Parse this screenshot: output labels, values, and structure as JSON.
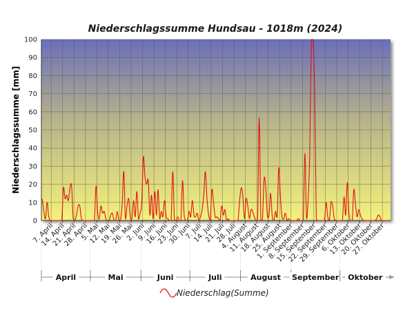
{
  "chart_data": {
    "type": "line",
    "title": "Niederschlagssumme Hundsau - 1018m (2024)",
    "ylabel": "Niederschlagssumme [mm]",
    "ylim": [
      0,
      100
    ],
    "yticks": [
      "0",
      "10",
      "20",
      "30",
      "40",
      "50",
      "60",
      "70",
      "80",
      "90",
      "100"
    ],
    "grid": true,
    "legend_position": "bottom-center",
    "date_range": [
      "2024-04-01",
      "2024-11-01"
    ],
    "week_ticks": [
      {
        "date": "2024-04-07",
        "label": "7. April"
      },
      {
        "date": "2024-04-14",
        "label": "14. April"
      },
      {
        "date": "2024-04-21",
        "label": "21. April"
      },
      {
        "date": "2024-04-28",
        "label": "28. April"
      },
      {
        "date": "2024-05-05",
        "label": "5. Mai"
      },
      {
        "date": "2024-05-12",
        "label": "12. Mai"
      },
      {
        "date": "2024-05-19",
        "label": "19. Mai"
      },
      {
        "date": "2024-05-26",
        "label": "26. Mai"
      },
      {
        "date": "2024-06-02",
        "label": "2. Juni"
      },
      {
        "date": "2024-06-09",
        "label": "9. Juni"
      },
      {
        "date": "2024-06-16",
        "label": "16. Juni"
      },
      {
        "date": "2024-06-23",
        "label": "23. Juni"
      },
      {
        "date": "2024-06-30",
        "label": "30. Juni"
      },
      {
        "date": "2024-07-07",
        "label": "7. Juli"
      },
      {
        "date": "2024-07-14",
        "label": "14. Juli"
      },
      {
        "date": "2024-07-21",
        "label": "21. Juli"
      },
      {
        "date": "2024-07-28",
        "label": "28. Juli"
      },
      {
        "date": "2024-08-04",
        "label": "4. August"
      },
      {
        "date": "2024-08-11",
        "label": "11. August"
      },
      {
        "date": "2024-08-18",
        "label": "18. August"
      },
      {
        "date": "2024-08-25",
        "label": "25. August"
      },
      {
        "date": "2024-09-01",
        "label": "1. September"
      },
      {
        "date": "2024-09-08",
        "label": "8. September"
      },
      {
        "date": "2024-09-15",
        "label": "15. September"
      },
      {
        "date": "2024-09-22",
        "label": "22. September"
      },
      {
        "date": "2024-09-29",
        "label": "29. September"
      },
      {
        "date": "2024-10-06",
        "label": "6. Oktober"
      },
      {
        "date": "2024-10-13",
        "label": "13. Oktober"
      },
      {
        "date": "2024-10-20",
        "label": "20. Oktober"
      },
      {
        "date": "2024-10-27",
        "label": "27. Oktober"
      }
    ],
    "months": [
      {
        "label": "April",
        "start": "2024-04-01",
        "end": "2024-05-01"
      },
      {
        "label": "Mai",
        "start": "2024-05-01",
        "end": "2024-06-01"
      },
      {
        "label": "Juni",
        "start": "2024-06-01",
        "end": "2024-07-01"
      },
      {
        "label": "Juli",
        "start": "2024-07-01",
        "end": "2024-08-01"
      },
      {
        "label": "August",
        "start": "2024-08-01",
        "end": "2024-09-01"
      },
      {
        "label": "September",
        "start": "2024-09-01",
        "end": "2024-10-01"
      },
      {
        "label": "Oktober",
        "start": "2024-10-01",
        "end": "2024-11-01"
      }
    ],
    "series": [
      {
        "name": "Niederschlag(Summe)",
        "color": "#e01010",
        "points": [
          [
            "2024-04-01",
            12
          ],
          [
            "2024-04-02",
            5
          ],
          [
            "2024-04-03",
            1
          ],
          [
            "2024-04-04",
            10
          ],
          [
            "2024-04-05",
            2
          ],
          [
            "2024-04-06",
            0
          ],
          [
            "2024-04-07",
            0
          ],
          [
            "2024-04-08",
            0
          ],
          [
            "2024-04-09",
            0
          ],
          [
            "2024-04-10",
            0
          ],
          [
            "2024-04-11",
            0
          ],
          [
            "2024-04-12",
            0
          ],
          [
            "2024-04-13",
            0
          ],
          [
            "2024-04-14",
            18
          ],
          [
            "2024-04-15",
            12
          ],
          [
            "2024-04-16",
            14
          ],
          [
            "2024-04-17",
            11
          ],
          [
            "2024-04-18",
            18
          ],
          [
            "2024-04-19",
            19
          ],
          [
            "2024-04-20",
            1
          ],
          [
            "2024-04-21",
            0
          ],
          [
            "2024-04-22",
            3
          ],
          [
            "2024-04-23",
            8
          ],
          [
            "2024-04-24",
            8
          ],
          [
            "2024-04-25",
            1
          ],
          [
            "2024-04-26",
            0
          ],
          [
            "2024-04-27",
            0
          ],
          [
            "2024-04-28",
            0
          ],
          [
            "2024-04-29",
            0
          ],
          [
            "2024-04-30",
            0
          ],
          [
            "2024-05-01",
            0
          ],
          [
            "2024-05-02",
            0
          ],
          [
            "2024-05-03",
            0
          ],
          [
            "2024-05-04",
            19
          ],
          [
            "2024-05-05",
            4
          ],
          [
            "2024-05-06",
            1
          ],
          [
            "2024-05-07",
            8
          ],
          [
            "2024-05-08",
            4
          ],
          [
            "2024-05-09",
            5
          ],
          [
            "2024-05-10",
            1
          ],
          [
            "2024-05-11",
            0
          ],
          [
            "2024-05-12",
            0
          ],
          [
            "2024-05-13",
            3
          ],
          [
            "2024-05-14",
            4
          ],
          [
            "2024-05-15",
            0
          ],
          [
            "2024-05-16",
            0
          ],
          [
            "2024-05-17",
            5
          ],
          [
            "2024-05-18",
            0
          ],
          [
            "2024-05-19",
            0
          ],
          [
            "2024-05-20",
            9
          ],
          [
            "2024-05-21",
            27
          ],
          [
            "2024-05-22",
            1
          ],
          [
            "2024-05-23",
            8
          ],
          [
            "2024-05-24",
            12
          ],
          [
            "2024-05-25",
            2
          ],
          [
            "2024-05-26",
            1
          ],
          [
            "2024-05-27",
            11
          ],
          [
            "2024-05-28",
            2
          ],
          [
            "2024-05-29",
            16
          ],
          [
            "2024-05-30",
            1
          ],
          [
            "2024-05-31",
            4
          ],
          [
            "2024-06-01",
            10
          ],
          [
            "2024-06-02",
            35
          ],
          [
            "2024-06-03",
            24
          ],
          [
            "2024-06-04",
            20
          ],
          [
            "2024-06-05",
            22
          ],
          [
            "2024-06-06",
            3
          ],
          [
            "2024-06-07",
            14
          ],
          [
            "2024-06-08",
            1
          ],
          [
            "2024-06-09",
            16
          ],
          [
            "2024-06-10",
            3
          ],
          [
            "2024-06-11",
            17
          ],
          [
            "2024-06-12",
            1
          ],
          [
            "2024-06-13",
            5
          ],
          [
            "2024-06-14",
            2
          ],
          [
            "2024-06-15",
            11
          ],
          [
            "2024-06-16",
            2
          ],
          [
            "2024-06-17",
            1
          ],
          [
            "2024-06-18",
            0
          ],
          [
            "2024-06-19",
            0
          ],
          [
            "2024-06-20",
            27
          ],
          [
            "2024-06-21",
            1
          ],
          [
            "2024-06-22",
            0
          ],
          [
            "2024-06-23",
            2
          ],
          [
            "2024-06-24",
            0
          ],
          [
            "2024-06-25",
            0
          ],
          [
            "2024-06-26",
            22
          ],
          [
            "2024-06-27",
            3
          ],
          [
            "2024-06-28",
            0
          ],
          [
            "2024-06-29",
            0
          ],
          [
            "2024-06-30",
            5
          ],
          [
            "2024-07-01",
            2
          ],
          [
            "2024-07-02",
            11
          ],
          [
            "2024-07-03",
            3
          ],
          [
            "2024-07-04",
            2
          ],
          [
            "2024-07-05",
            4
          ],
          [
            "2024-07-06",
            0
          ],
          [
            "2024-07-07",
            2
          ],
          [
            "2024-07-08",
            6
          ],
          [
            "2024-07-09",
            14
          ],
          [
            "2024-07-10",
            27
          ],
          [
            "2024-07-11",
            12
          ],
          [
            "2024-07-12",
            3
          ],
          [
            "2024-07-13",
            0
          ],
          [
            "2024-07-14",
            17
          ],
          [
            "2024-07-15",
            10
          ],
          [
            "2024-07-16",
            2
          ],
          [
            "2024-07-17",
            2
          ],
          [
            "2024-07-18",
            1
          ],
          [
            "2024-07-19",
            0
          ],
          [
            "2024-07-20",
            8
          ],
          [
            "2024-07-21",
            3
          ],
          [
            "2024-07-22",
            6
          ],
          [
            "2024-07-23",
            0
          ],
          [
            "2024-07-24",
            1
          ],
          [
            "2024-07-25",
            0
          ],
          [
            "2024-07-26",
            0
          ],
          [
            "2024-07-27",
            0
          ],
          [
            "2024-07-28",
            0
          ],
          [
            "2024-07-29",
            0
          ],
          [
            "2024-07-30",
            0
          ],
          [
            "2024-07-31",
            11
          ],
          [
            "2024-08-01",
            18
          ],
          [
            "2024-08-02",
            13
          ],
          [
            "2024-08-03",
            1
          ],
          [
            "2024-08-04",
            12
          ],
          [
            "2024-08-05",
            8
          ],
          [
            "2024-08-06",
            1
          ],
          [
            "2024-08-07",
            6
          ],
          [
            "2024-08-08",
            5
          ],
          [
            "2024-08-09",
            2
          ],
          [
            "2024-08-10",
            0
          ],
          [
            "2024-08-11",
            0
          ],
          [
            "2024-08-12",
            57
          ],
          [
            "2024-08-13",
            0
          ],
          [
            "2024-08-14",
            1
          ],
          [
            "2024-08-15",
            23
          ],
          [
            "2024-08-16",
            18
          ],
          [
            "2024-08-17",
            3
          ],
          [
            "2024-08-18",
            3
          ],
          [
            "2024-08-19",
            15
          ],
          [
            "2024-08-20",
            2
          ],
          [
            "2024-08-21",
            0
          ],
          [
            "2024-08-22",
            5
          ],
          [
            "2024-08-23",
            2
          ],
          [
            "2024-08-24",
            29
          ],
          [
            "2024-08-25",
            13
          ],
          [
            "2024-08-26",
            2
          ],
          [
            "2024-08-27",
            1
          ],
          [
            "2024-08-28",
            4
          ],
          [
            "2024-08-29",
            0
          ],
          [
            "2024-08-30",
            1
          ],
          [
            "2024-08-31",
            0
          ],
          [
            "2024-09-01",
            0
          ],
          [
            "2024-09-02",
            0
          ],
          [
            "2024-09-03",
            0
          ],
          [
            "2024-09-04",
            0
          ],
          [
            "2024-09-05",
            1
          ],
          [
            "2024-09-06",
            0
          ],
          [
            "2024-09-07",
            0
          ],
          [
            "2024-09-08",
            0
          ],
          [
            "2024-09-09",
            37
          ],
          [
            "2024-09-10",
            1
          ],
          [
            "2024-09-11",
            12
          ],
          [
            "2024-09-12",
            38
          ],
          [
            "2024-09-13",
            100
          ],
          [
            "2024-09-14",
            100
          ],
          [
            "2024-09-15",
            72
          ],
          [
            "2024-09-16",
            1
          ],
          [
            "2024-09-17",
            0
          ],
          [
            "2024-09-18",
            0
          ],
          [
            "2024-09-19",
            0
          ],
          [
            "2024-09-20",
            0
          ],
          [
            "2024-09-21",
            0
          ],
          [
            "2024-09-22",
            10
          ],
          [
            "2024-09-23",
            2
          ],
          [
            "2024-09-24",
            0
          ],
          [
            "2024-09-25",
            10
          ],
          [
            "2024-09-26",
            8
          ],
          [
            "2024-09-27",
            1
          ],
          [
            "2024-09-28",
            0
          ],
          [
            "2024-09-29",
            0
          ],
          [
            "2024-09-30",
            0
          ],
          [
            "2024-10-01",
            0
          ],
          [
            "2024-10-02",
            0
          ],
          [
            "2024-10-03",
            13
          ],
          [
            "2024-10-04",
            3
          ],
          [
            "2024-10-05",
            21
          ],
          [
            "2024-10-06",
            4
          ],
          [
            "2024-10-07",
            0
          ],
          [
            "2024-10-08",
            0
          ],
          [
            "2024-10-09",
            17
          ],
          [
            "2024-10-10",
            9
          ],
          [
            "2024-10-11",
            2
          ],
          [
            "2024-10-12",
            6
          ],
          [
            "2024-10-13",
            3
          ],
          [
            "2024-10-14",
            1
          ],
          [
            "2024-10-15",
            0
          ],
          [
            "2024-10-16",
            0
          ],
          [
            "2024-10-17",
            0
          ],
          [
            "2024-10-18",
            0
          ],
          [
            "2024-10-19",
            0
          ],
          [
            "2024-10-20",
            0
          ],
          [
            "2024-10-21",
            0
          ],
          [
            "2024-10-22",
            0
          ],
          [
            "2024-10-23",
            1
          ],
          [
            "2024-10-24",
            3
          ],
          [
            "2024-10-25",
            2
          ],
          [
            "2024-10-26",
            0
          ],
          [
            "2024-10-27",
            0
          ],
          [
            "2024-10-28",
            0
          ],
          [
            "2024-10-29",
            0
          ],
          [
            "2024-10-30",
            0
          ],
          [
            "2024-10-31",
            0
          ]
        ]
      }
    ],
    "colors": {
      "plot_top": "#6b6fb8",
      "plot_mid": "#b8b48a",
      "plot_bottom": "#f4f27a",
      "grid": "#555555",
      "axis": "#333333"
    }
  }
}
